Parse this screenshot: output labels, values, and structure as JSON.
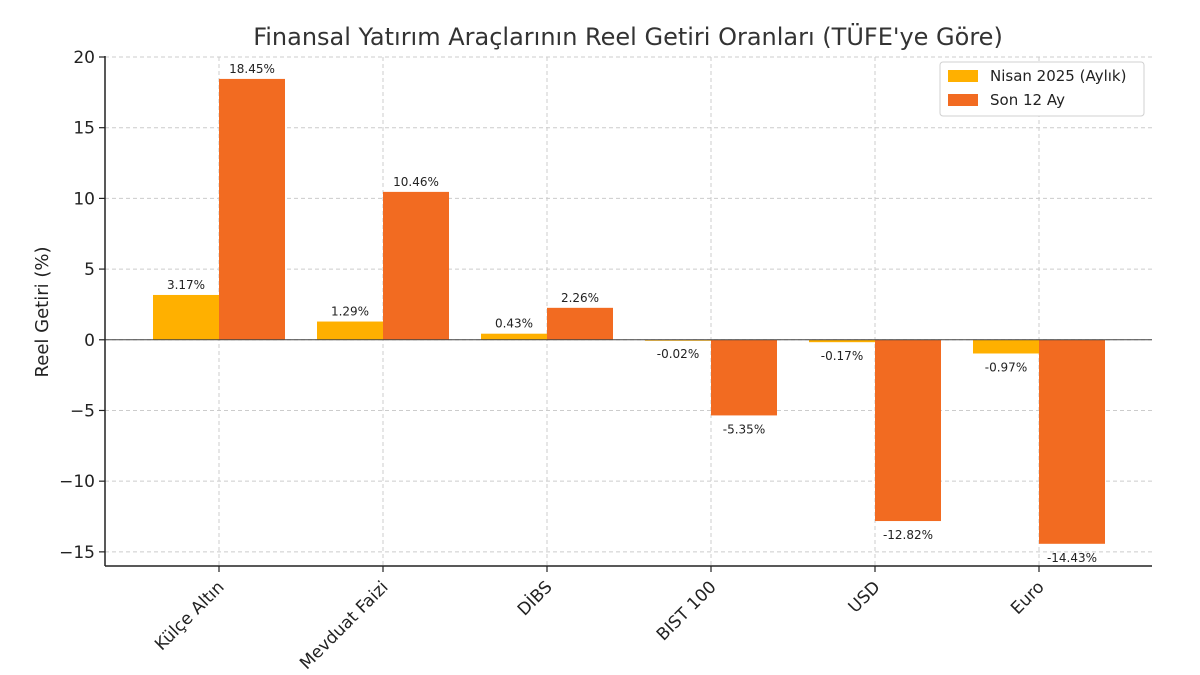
{
  "chart_data": {
    "type": "bar",
    "title": "Finansal Yatırım Araçlarının Reel Getiri Oranları (TÜFE'ye Göre)",
    "xlabel": "",
    "ylabel": "Reel Getiri (%)",
    "ylim": [
      -16,
      20
    ],
    "yticks": [
      20,
      15,
      10,
      5,
      0,
      -5,
      -10,
      -15
    ],
    "ytick_labels": [
      "20",
      "15",
      "10",
      "5",
      "0",
      "−5",
      "−10",
      "−15"
    ],
    "grid": true,
    "legend_position": "top-right",
    "categories": [
      "Külçe Altın",
      "Mevduat Faizi",
      "DİBS",
      "BIST 100",
      "USD",
      "Euro"
    ],
    "series": [
      {
        "name": "Nisan 2025 (Aylık)",
        "color": "#FFB000",
        "values": [
          3.17,
          1.29,
          0.43,
          -0.02,
          -0.17,
          -0.97
        ],
        "labels": [
          "3.17%",
          "1.29%",
          "0.43%",
          "-0.02%",
          "-0.17%",
          "-0.97%"
        ]
      },
      {
        "name": "Son 12 Ay",
        "color": "#F26B21",
        "values": [
          18.45,
          10.46,
          2.26,
          -5.35,
          -12.82,
          -14.43
        ],
        "labels": [
          "18.45%",
          "10.46%",
          "2.26%",
          "-5.35%",
          "-12.82%",
          "-14.43%"
        ]
      }
    ]
  }
}
